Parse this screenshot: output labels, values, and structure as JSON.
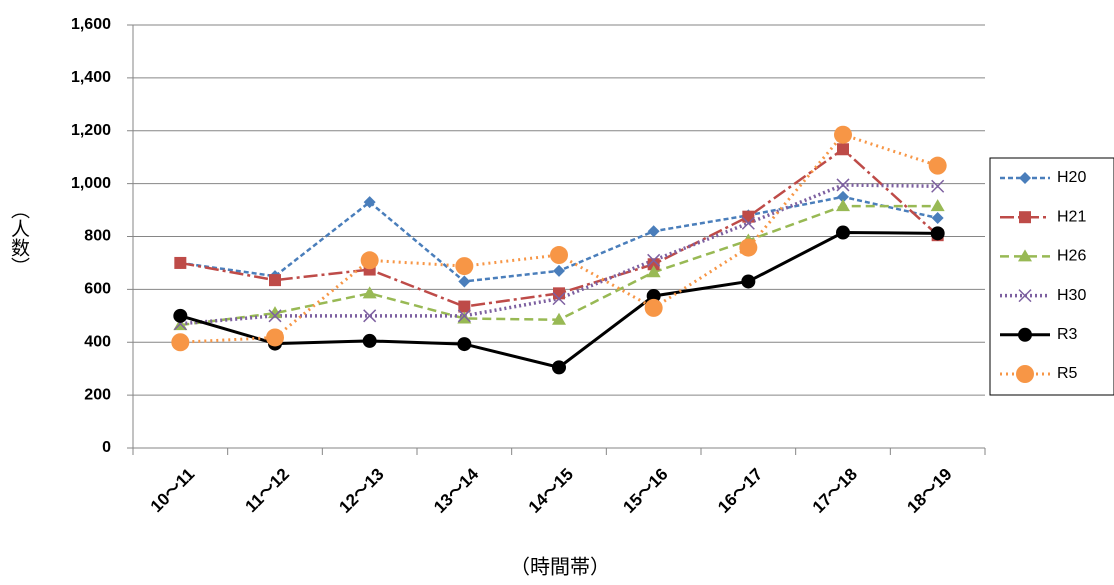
{
  "chart_data": {
    "type": "line",
    "x_label": "（時間帯）",
    "y_label": "（人数）",
    "categories": [
      "10～11",
      "11～12",
      "12～13",
      "13～14",
      "14～15",
      "15～16",
      "16～17",
      "17～18",
      "18～19"
    ],
    "ylim": [
      0,
      1600
    ],
    "yticks": [
      0,
      200,
      400,
      600,
      800,
      {
        "value": 1000,
        "label": "1,000"
      },
      {
        "value": 1200,
        "label": "1,200"
      },
      {
        "value": 1400,
        "label": "1,400"
      },
      {
        "value": 1600,
        "label": "1,600"
      }
    ],
    "grid": true,
    "legend": "right",
    "series": [
      {
        "name": "H20",
        "color": "#4a7ebb",
        "dash": "5,3",
        "width": 2.5,
        "marker": "diamond",
        "values": [
          700,
          650,
          930,
          630,
          670,
          820,
          880,
          950,
          870
        ]
      },
      {
        "name": "H21",
        "color": "#be4b48",
        "dash": "14,4,3,4",
        "width": 2.5,
        "marker": "square",
        "values": [
          700,
          635,
          675,
          535,
          585,
          695,
          875,
          1130,
          805
        ]
      },
      {
        "name": "H26",
        "color": "#98b954",
        "dash": "9,5",
        "width": 2.5,
        "marker": "triangle",
        "values": [
          465,
          510,
          585,
          490,
          485,
          665,
          785,
          915,
          915
        ]
      },
      {
        "name": "H30",
        "color": "#7d60a0",
        "dash": "2,3",
        "width": 3.5,
        "marker": "x",
        "values": [
          470,
          500,
          500,
          500,
          565,
          710,
          850,
          995,
          990
        ]
      },
      {
        "name": "R3",
        "color": "#000000",
        "dash": "none",
        "width": 3,
        "marker": "circle",
        "values": [
          500,
          395,
          405,
          393,
          305,
          575,
          630,
          815,
          812
        ]
      },
      {
        "name": "R5",
        "color": "#f79646",
        "dash": "2,4",
        "width": 3,
        "marker": "bigcircle",
        "values": [
          400,
          418,
          710,
          688,
          730,
          530,
          758,
          1185,
          1068
        ]
      }
    ]
  }
}
